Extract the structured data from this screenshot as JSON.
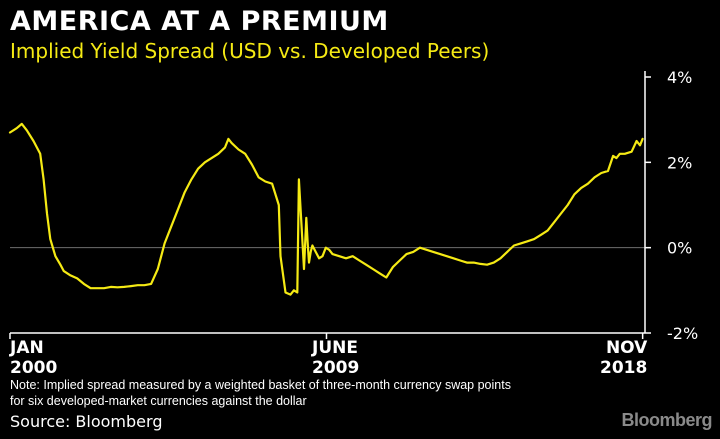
{
  "header": {
    "title": "AMERICA AT A PREMIUM",
    "subtitle": "Implied Yield Spread (USD vs. Developed Peers)"
  },
  "footer": {
    "note_line1": "Note: Implied spread measured by a weighted basket of three-month currency swap points",
    "note_line2": "for six developed-market currencies against the dollar",
    "source": "Source: Bloomberg",
    "brand": "Bloomberg"
  },
  "x_axis_labels": [
    {
      "month": "JAN",
      "year": "2000"
    },
    {
      "month": "JUNE",
      "year": "2009"
    },
    {
      "month": "NOV",
      "year": "2018"
    }
  ],
  "colors": {
    "background": "#000000",
    "line": "#f5ea14",
    "axis": "#ffffff",
    "zero_line": "#6e6e6e",
    "title": "#ffffff",
    "subtitle": "#f5ea14"
  },
  "chart_data": {
    "type": "line",
    "title": "AMERICA AT A PREMIUM",
    "subtitle": "Implied Yield Spread (USD vs. Developed Peers)",
    "xlabel": "",
    "ylabel": "",
    "y_unit": "%",
    "ylim": [
      -2,
      4
    ],
    "yticks": [
      -2,
      0,
      2,
      4
    ],
    "ytick_labels": [
      "-2%",
      "0%",
      "2%",
      "4%"
    ],
    "xlim": [
      2000.0,
      2018.9
    ],
    "xticks": [
      2000.0,
      2009.42,
      2018.83
    ],
    "xtick_labels": [
      "JAN 2000",
      "JUNE 2009",
      "NOV 2018"
    ],
    "reference_line": 0,
    "grid": false,
    "series": [
      {
        "x": [
          2000.0,
          2000.2,
          2000.35,
          2000.5,
          2000.7,
          2000.9,
          2001.0,
          2001.1,
          2001.2,
          2001.35,
          2001.5,
          2001.6,
          2001.8,
          2002.0,
          2002.2,
          2002.4,
          2002.6,
          2002.8,
          2003.0,
          2003.2,
          2003.4,
          2003.6,
          2003.8,
          2004.0,
          2004.2,
          2004.4,
          2004.5,
          2004.6,
          2004.8,
          2005.0,
          2005.2,
          2005.4,
          2005.6,
          2005.8,
          2006.0,
          2006.2,
          2006.4,
          2006.5,
          2006.6,
          2006.8,
          2007.0,
          2007.2,
          2007.4,
          2007.6,
          2007.8,
          2008.0,
          2008.05,
          2008.2,
          2008.35,
          2008.45,
          2008.55,
          2008.6,
          2008.75,
          2008.82,
          2008.86,
          2008.9,
          2008.95,
          2009.0,
          2009.1,
          2009.2,
          2009.3,
          2009.4,
          2009.5,
          2009.6,
          2009.8,
          2010.0,
          2010.2,
          2010.4,
          2010.6,
          2010.8,
          2011.0,
          2011.2,
          2011.4,
          2011.6,
          2011.8,
          2012.0,
          2012.2,
          2012.4,
          2012.6,
          2012.8,
          2013.0,
          2013.2,
          2013.4,
          2013.6,
          2013.8,
          2014.0,
          2014.2,
          2014.4,
          2014.6,
          2014.8,
          2015.0,
          2015.2,
          2015.4,
          2015.6,
          2015.8,
          2016.0,
          2016.2,
          2016.4,
          2016.6,
          2016.8,
          2017.0,
          2017.2,
          2017.4,
          2017.6,
          2017.8,
          2017.95,
          2018.05,
          2018.15,
          2018.3,
          2018.5,
          2018.65,
          2018.75,
          2018.83
        ],
        "y": [
          2.7,
          2.8,
          2.9,
          2.75,
          2.5,
          2.2,
          1.6,
          0.8,
          0.2,
          -0.2,
          -0.4,
          -0.55,
          -0.65,
          -0.72,
          -0.85,
          -0.95,
          -0.95,
          -0.95,
          -0.92,
          -0.93,
          -0.92,
          -0.9,
          -0.88,
          -0.88,
          -0.85,
          -0.5,
          -0.2,
          0.1,
          0.5,
          0.9,
          1.3,
          1.6,
          1.85,
          2.0,
          2.1,
          2.2,
          2.35,
          2.55,
          2.45,
          2.3,
          2.2,
          1.95,
          1.65,
          1.55,
          1.5,
          1.0,
          -0.2,
          -1.05,
          -1.1,
          -1.0,
          -1.05,
          1.6,
          -0.5,
          0.7,
          0.1,
          -0.35,
          -0.1,
          0.05,
          -0.1,
          -0.25,
          -0.2,
          0.0,
          -0.05,
          -0.15,
          -0.2,
          -0.25,
          -0.2,
          -0.3,
          -0.4,
          -0.5,
          -0.6,
          -0.7,
          -0.45,
          -0.3,
          -0.15,
          -0.1,
          0.0,
          -0.05,
          -0.1,
          -0.15,
          -0.2,
          -0.25,
          -0.3,
          -0.35,
          -0.35,
          -0.38,
          -0.4,
          -0.35,
          -0.25,
          -0.1,
          0.05,
          0.1,
          0.15,
          0.2,
          0.3,
          0.4,
          0.6,
          0.8,
          1.0,
          1.25,
          1.4,
          1.5,
          1.65,
          1.75,
          1.8,
          2.15,
          2.1,
          2.2,
          2.2,
          2.25,
          2.5,
          2.4,
          2.55
        ]
      }
    ]
  }
}
